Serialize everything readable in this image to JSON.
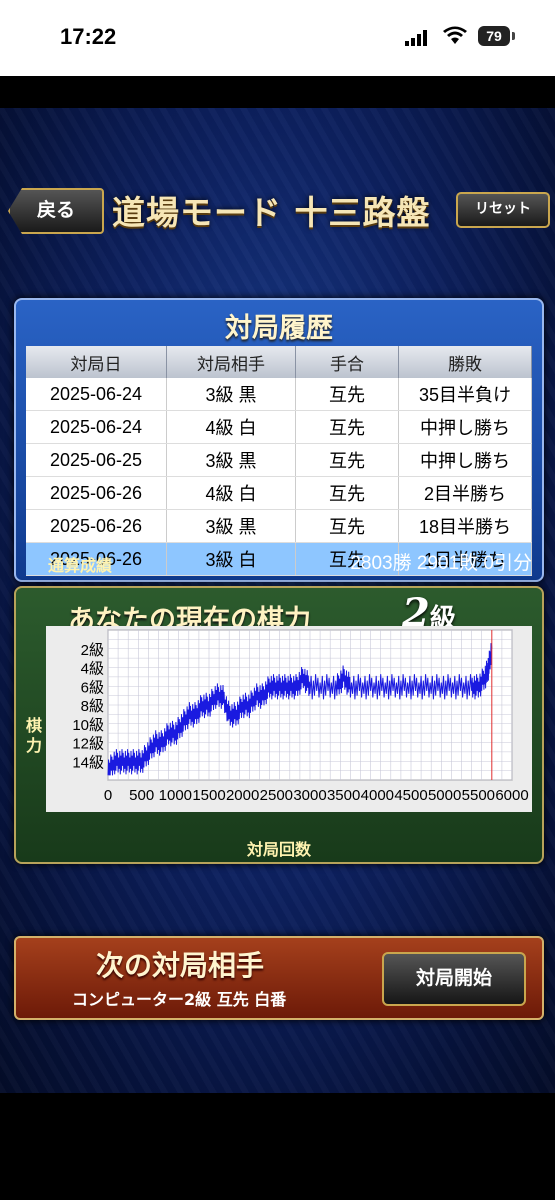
{
  "status_bar": {
    "time": "17:22",
    "battery": "79"
  },
  "header": {
    "back_label": "戻る",
    "title": "道場モード  十三路盤",
    "reset_label": "リセット"
  },
  "history": {
    "title": "対局履歴",
    "columns": [
      "対局日",
      "対局相手",
      "手合",
      "勝敗"
    ],
    "rows": [
      {
        "date": "2025-06-24",
        "opponent": "3級 黒",
        "handicap": "互先",
        "result": "35目半負け"
      },
      {
        "date": "2025-06-24",
        "opponent": "4級 白",
        "handicap": "互先",
        "result": "中押し勝ち"
      },
      {
        "date": "2025-06-25",
        "opponent": "3級 黒",
        "handicap": "互先",
        "result": "中押し勝ち"
      },
      {
        "date": "2025-06-26",
        "opponent": "4級 白",
        "handicap": "互先",
        "result": "2目半勝ち"
      },
      {
        "date": "2025-06-26",
        "opponent": "3級 黒",
        "handicap": "互先",
        "result": "18目半勝ち"
      },
      {
        "date": "2025-06-26",
        "opponent": "3級 白",
        "handicap": "互先",
        "result": "1目半勝ち"
      }
    ],
    "totals_label": "通算成績",
    "totals_value": "2803勝 2901敗 0引分"
  },
  "strength": {
    "title": "あなたの現在の棋力",
    "rank_number": "2",
    "rank_unit": "級"
  },
  "chart_data": {
    "type": "line",
    "ylabel": "棋力",
    "xlabel": "対局回数",
    "yticks": [
      "2級",
      "4級",
      "6級",
      "8級",
      "10級",
      "12級",
      "14級"
    ],
    "xticks": [
      "0",
      "500",
      "1000",
      "1500",
      "2000",
      "2500",
      "3000",
      "3500",
      "4000",
      "4500",
      "5000",
      "5500",
      "6000"
    ],
    "xlim": [
      0,
      6000
    ],
    "ylim": [
      16,
      0
    ],
    "grid": true,
    "series": [
      {
        "color": "#1a1ae0",
        "points": [
          [
            0,
            15
          ],
          [
            100,
            14
          ],
          [
            200,
            14
          ],
          [
            300,
            14
          ],
          [
            400,
            14
          ],
          [
            500,
            14
          ],
          [
            600,
            13
          ],
          [
            700,
            12
          ],
          [
            800,
            12
          ],
          [
            900,
            11
          ],
          [
            1000,
            11
          ],
          [
            1100,
            10
          ],
          [
            1200,
            9
          ],
          [
            1300,
            9
          ],
          [
            1400,
            8
          ],
          [
            1500,
            8
          ],
          [
            1600,
            7
          ],
          [
            1700,
            7
          ],
          [
            1800,
            9
          ],
          [
            1900,
            9
          ],
          [
            2000,
            8
          ],
          [
            2100,
            8
          ],
          [
            2200,
            7
          ],
          [
            2300,
            7
          ],
          [
            2400,
            6
          ],
          [
            2500,
            6
          ],
          [
            2600,
            6
          ],
          [
            2700,
            6
          ],
          [
            2800,
            6
          ],
          [
            2900,
            5
          ],
          [
            3000,
            6
          ],
          [
            3200,
            6
          ],
          [
            3400,
            6
          ],
          [
            3500,
            5
          ],
          [
            3600,
            6
          ],
          [
            3800,
            6
          ],
          [
            4000,
            6
          ],
          [
            4200,
            6
          ],
          [
            4400,
            6
          ],
          [
            4600,
            6
          ],
          [
            4800,
            6
          ],
          [
            5000,
            6
          ],
          [
            5200,
            6
          ],
          [
            5400,
            6
          ],
          [
            5500,
            6
          ],
          [
            5600,
            5
          ],
          [
            5650,
            4
          ],
          [
            5700,
            2
          ]
        ]
      }
    ],
    "marker_x": 5700,
    "marker_color": "#e03030"
  },
  "next_match": {
    "title": "次の対局相手",
    "detail": "コンピューター2級 互先 白番",
    "start_label": "対局開始"
  }
}
